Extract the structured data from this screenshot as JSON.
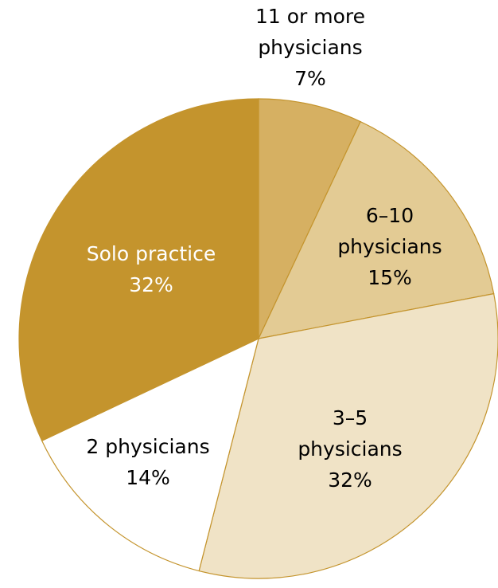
{
  "chart_data": {
    "type": "pie",
    "categories": [
      "11 or more physicians",
      "6–10 physicians",
      "3–5 physicians",
      "2 physicians",
      "Solo practice"
    ],
    "values": [
      7,
      15,
      32,
      14,
      32
    ],
    "value_labels": [
      "7%",
      "15%",
      "32%",
      "14%",
      "32%"
    ],
    "colors": [
      "#d6b062",
      "#e3cb94",
      "#f0e3c6",
      "#ffffff",
      "#c4942d"
    ]
  }
}
